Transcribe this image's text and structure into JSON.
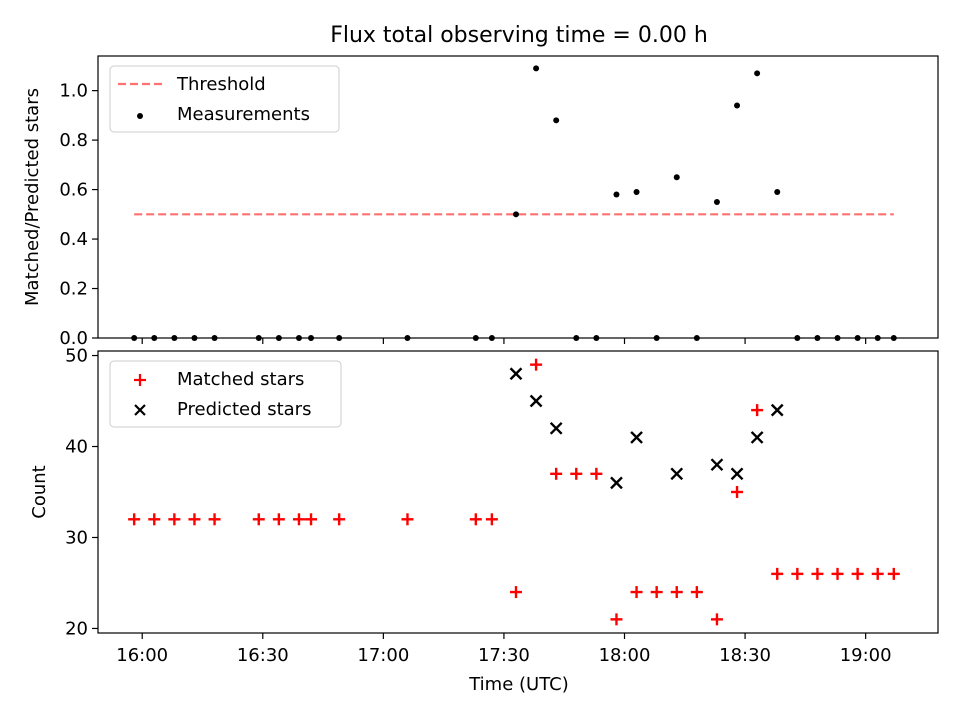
{
  "title": "Flux total observing time = 0.00 h",
  "colors": {
    "threshold": "#ff7070",
    "measurement": "#000000",
    "matched": "#ff0000",
    "predicted": "#000000"
  },
  "chart_data": [
    {
      "type": "scatter",
      "ylabel": "Matched/Predicted stars",
      "ylim": [
        0,
        1.14
      ],
      "yticks": [
        0.0,
        0.2,
        0.4,
        0.6,
        0.8,
        1.0
      ],
      "ytick_labels": [
        "0.0",
        "0.2",
        "0.4",
        "0.6",
        "0.8",
        "1.0"
      ],
      "legend_position": "top-left",
      "legend": [
        "Threshold",
        "Measurements"
      ],
      "threshold": {
        "name": "Threshold",
        "y": 0.5,
        "x_start": "15:58",
        "x_end": "19:07",
        "style": "dashed"
      },
      "series": [
        {
          "name": "Measurements",
          "x": [
            "15:58",
            "16:03",
            "16:08",
            "16:13",
            "16:18",
            "16:29",
            "16:34",
            "16:39",
            "16:42",
            "16:49",
            "17:06",
            "17:23",
            "17:27",
            "17:33",
            "17:38",
            "17:43",
            "17:48",
            "17:53",
            "17:58",
            "18:03",
            "18:08",
            "18:13",
            "18:18",
            "18:23",
            "18:28",
            "18:33",
            "18:38",
            "18:43",
            "18:48",
            "18:53",
            "18:58",
            "19:03",
            "19:07"
          ],
          "y": [
            0,
            0,
            0,
            0,
            0,
            0,
            0,
            0,
            0,
            0,
            0,
            0,
            0,
            0.5,
            1.09,
            0.88,
            0,
            0,
            0.58,
            0.59,
            0,
            0.65,
            0,
            0.55,
            0.94,
            1.07,
            0.59,
            0,
            0,
            0,
            0,
            0,
            0
          ]
        }
      ]
    },
    {
      "type": "scatter",
      "xlabel": "Time (UTC)",
      "ylabel": "Count",
      "ylim": [
        19.5,
        50.5
      ],
      "yticks": [
        20,
        30,
        40,
        50
      ],
      "ytick_labels": [
        "20",
        "30",
        "40",
        "50"
      ],
      "xticks": [
        "16:00",
        "16:30",
        "17:00",
        "17:30",
        "18:00",
        "18:30",
        "19:00"
      ],
      "xlim": [
        "15:49",
        "19:18"
      ],
      "legend_position": "top-left",
      "legend": [
        "Matched stars",
        "Predicted stars"
      ],
      "series": [
        {
          "name": "Matched stars",
          "marker": "plus",
          "x": [
            "15:58",
            "16:03",
            "16:08",
            "16:13",
            "16:18",
            "16:29",
            "16:34",
            "16:39",
            "16:42",
            "16:49",
            "17:06",
            "17:23",
            "17:27",
            "17:33",
            "17:38",
            "17:43",
            "17:48",
            "17:53",
            "17:58",
            "18:03",
            "18:08",
            "18:13",
            "18:18",
            "18:23",
            "18:28",
            "18:33",
            "18:38",
            "18:43",
            "18:48",
            "18:53",
            "18:58",
            "19:03",
            "19:07"
          ],
          "y": [
            32,
            32,
            32,
            32,
            32,
            32,
            32,
            32,
            32,
            32,
            32,
            32,
            32,
            24,
            49,
            37,
            37,
            37,
            21,
            24,
            24,
            24,
            24,
            21,
            35,
            44,
            26,
            26,
            26,
            26,
            26,
            26,
            26
          ]
        },
        {
          "name": "Predicted stars",
          "marker": "x",
          "x": [
            "17:33",
            "17:38",
            "17:43",
            "17:58",
            "18:03",
            "18:13",
            "18:23",
            "18:28",
            "18:33",
            "18:38"
          ],
          "y": [
            48,
            45,
            42,
            36,
            41,
            37,
            38,
            37,
            41,
            44
          ]
        }
      ]
    }
  ]
}
